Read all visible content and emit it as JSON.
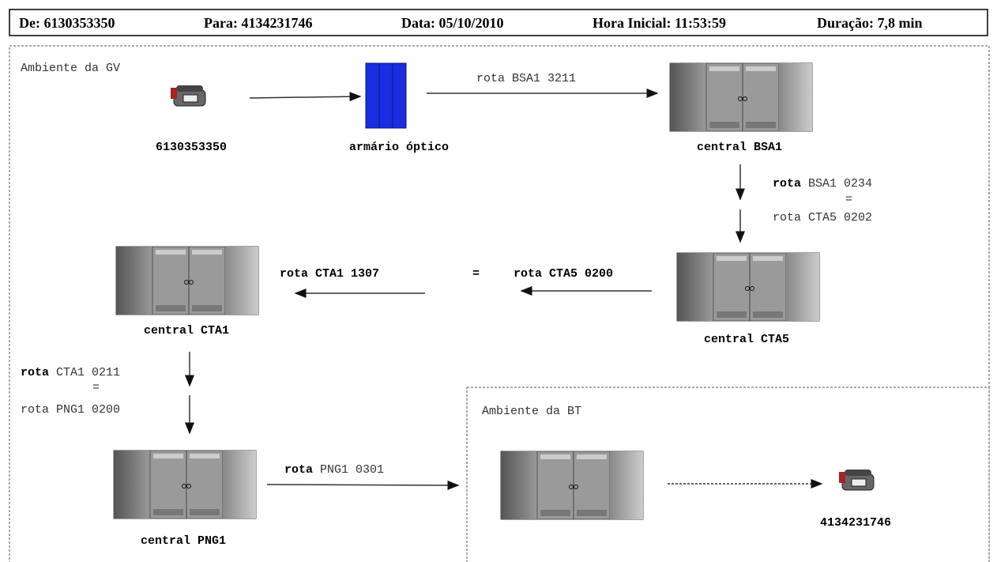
{
  "header": {
    "fields": [
      {
        "label": "De:",
        "value": "6130353350"
      },
      {
        "label": "Para:",
        "value": "4134231746"
      },
      {
        "label": "Data:",
        "value": "05/10/2010"
      },
      {
        "label": "Hora Inicial:",
        "value": "11:53:59"
      },
      {
        "label": "Duração:",
        "value": "7,8 min"
      }
    ]
  },
  "zones": [
    {
      "label": "Ambiente da GV"
    },
    {
      "label": "Ambiente da BT"
    }
  ],
  "nodes": [
    {
      "label": "6130353350"
    },
    {
      "label": "armário óptico"
    },
    {
      "label": "central BSA1"
    },
    {
      "label": "central CTA5"
    },
    {
      "label": "central CTA1"
    },
    {
      "label": "central PNG1"
    },
    {
      "label": "4134231746"
    }
  ],
  "routes": [
    {
      "text": "rota BSA1 3211"
    },
    {
      "keyword": "rota",
      "text": "BSA1 0234",
      "equals": "=",
      "alt": "rota CTA5 0202"
    },
    {
      "text": "rota CTA1 1307",
      "equals": "=",
      "alt": "rota CTA5 0200"
    },
    {
      "keyword": "rota",
      "text": "CTA1 0211",
      "equals": "=",
      "alt": "rota PNG1 0200"
    },
    {
      "keyword": "rota",
      "text": "PNG1 0301"
    }
  ]
}
